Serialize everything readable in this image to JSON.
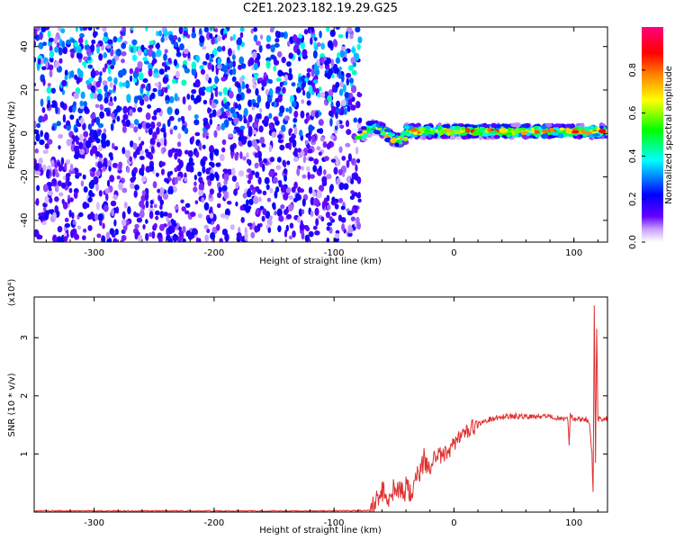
{
  "title": "C2E1.2023.182.19.29.G25",
  "chart_data": [
    {
      "type": "heatmap",
      "xlabel": "Height of straight line (km)",
      "ylabel": "Frequency (Hz)",
      "xlim": [
        -350,
        128
      ],
      "ylim": [
        -50,
        49
      ],
      "xticks": [
        -300,
        -200,
        -100,
        0,
        100
      ],
      "yticks": [
        -40,
        -20,
        0,
        20,
        40
      ],
      "colorbar": {
        "label": "Normalized spectral amplitude",
        "range": [
          0,
          1
        ],
        "ticks": [
          0.0,
          0.2,
          0.4,
          0.6,
          0.8
        ],
        "colors": [
          "#ffffff",
          "#6400ff",
          "#0000ff",
          "#00ffff",
          "#00ff00",
          "#ffff00",
          "#ff8000",
          "#ff0000",
          "#ff0080"
        ]
      },
      "regions": [
        {
          "x_range": [
            -350,
            -80
          ],
          "y_range": [
            -50,
            49
          ],
          "amplitude": "0.05-0.45 noise, denser above 15 Hz"
        },
        {
          "x_range": [
            -80,
            128
          ],
          "y_range": [
            -3,
            4
          ],
          "amplitude": "0.4-1.0 narrow band near 0-2 Hz"
        }
      ]
    },
    {
      "type": "line",
      "xlabel": "Height of straight line (km)",
      "ylabel": "SNR (10 * v/v)",
      "yscale_label": "(x10⁴)",
      "xlim": [
        -350,
        128
      ],
      "ylim": [
        0,
        3.7
      ],
      "xticks": [
        -300,
        -200,
        -100,
        0,
        100
      ],
      "yticks": [
        1,
        2,
        3
      ],
      "series": [
        {
          "color": "#e03030",
          "x": [
            -350,
            -300,
            -200,
            -100,
            -70,
            -60,
            -55,
            -50,
            -45,
            -40,
            -35,
            -30,
            -25,
            -20,
            -15,
            -10,
            -5,
            0,
            5,
            10,
            15,
            20,
            25,
            30,
            40,
            60,
            80,
            95,
            96,
            97,
            100,
            110,
            113,
            115,
            116,
            117,
            118,
            119,
            120,
            125,
            128
          ],
          "y": [
            0.02,
            0.02,
            0.02,
            0.02,
            0.03,
            0.35,
            0.25,
            0.45,
            0.3,
            0.4,
            0.35,
            0.6,
            0.9,
            0.75,
            1.0,
            0.95,
            1.05,
            1.2,
            1.3,
            1.35,
            1.45,
            1.5,
            1.55,
            1.6,
            1.65,
            1.65,
            1.65,
            1.6,
            1.1,
            1.7,
            1.6,
            1.6,
            1.55,
            1.0,
            0.3,
            3.6,
            0.8,
            3.2,
            1.6,
            1.6,
            1.6
          ]
        }
      ]
    }
  ]
}
